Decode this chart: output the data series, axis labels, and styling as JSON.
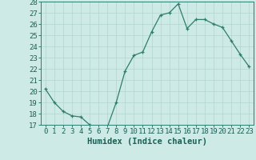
{
  "x": [
    0,
    1,
    2,
    3,
    4,
    5,
    6,
    7,
    8,
    9,
    10,
    11,
    12,
    13,
    14,
    15,
    16,
    17,
    18,
    19,
    20,
    21,
    22,
    23
  ],
  "y": [
    20.2,
    19.0,
    18.2,
    17.8,
    17.7,
    17.0,
    16.8,
    16.8,
    19.0,
    21.8,
    23.2,
    23.5,
    25.3,
    26.8,
    27.0,
    27.8,
    25.6,
    26.4,
    26.4,
    26.0,
    25.7,
    24.5,
    23.3,
    22.2
  ],
  "xlabel": "Humidex (Indice chaleur)",
  "ylim": [
    17,
    28
  ],
  "xlim": [
    -0.5,
    23.5
  ],
  "yticks": [
    17,
    18,
    19,
    20,
    21,
    22,
    23,
    24,
    25,
    26,
    27,
    28
  ],
  "xticks": [
    0,
    1,
    2,
    3,
    4,
    5,
    6,
    7,
    8,
    9,
    10,
    11,
    12,
    13,
    14,
    15,
    16,
    17,
    18,
    19,
    20,
    21,
    22,
    23
  ],
  "line_color": "#2e7d6e",
  "marker": "+",
  "bg_color": "#ceeae6",
  "grid_color": "#b0d4cf",
  "label_color": "#1a5f54",
  "tick_label_size": 6.5,
  "xlabel_size": 7.5
}
